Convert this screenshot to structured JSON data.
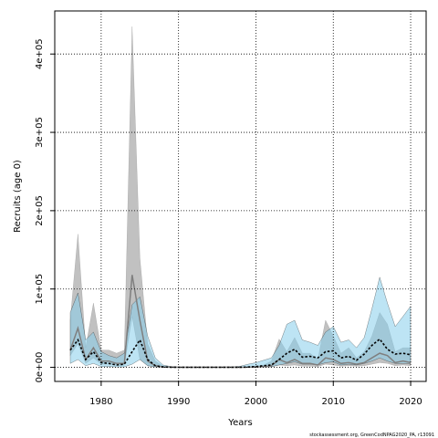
{
  "chart_data": {
    "type": "area",
    "xlabel": "Years",
    "ylabel": "Recruits (age 0)",
    "xlim": [
      1974,
      2022
    ],
    "ylim": [
      -18000,
      455000
    ],
    "x_ticks": [
      1980,
      1990,
      2000,
      2010,
      2020
    ],
    "y_ticks": [
      0,
      100000,
      200000,
      300000,
      400000
    ],
    "y_tick_labels": [
      "0e+00",
      "1e+05",
      "2e+05",
      "3e+05",
      "4e+05"
    ],
    "grid": true,
    "credit": "stockassessment.org, GreenCodNPAG2020_PA, r13091",
    "x": [
      1976,
      1977,
      1978,
      1979,
      1980,
      1981,
      1982,
      1983,
      1984,
      1985,
      1986,
      1987,
      1988,
      1989,
      1990,
      1991,
      1992,
      1993,
      1994,
      1995,
      1996,
      1997,
      1998,
      1999,
      2000,
      2001,
      2002,
      2003,
      2004,
      2005,
      2006,
      2007,
      2008,
      2009,
      2010,
      2011,
      2012,
      2013,
      2014,
      2015,
      2016,
      2017,
      2018,
      2019,
      2020
    ],
    "series": [
      {
        "color": "#7f7f7f",
        "fill": "#bebebe",
        "values": [
          22000,
          50000,
          10000,
          25000,
          8000,
          8000,
          5000,
          5000,
          118000,
          60000,
          8000,
          2000,
          300,
          200,
          100,
          100,
          100,
          100,
          100,
          100,
          100,
          100,
          100,
          200,
          500,
          1000,
          2000,
          10000,
          6000,
          10000,
          5000,
          5000,
          3000,
          12000,
          10000,
          5000,
          6000,
          4000,
          6000,
          12000,
          18000,
          15000,
          6000,
          8000,
          6000
        ],
        "lower": [
          15000,
          30000,
          5000,
          12000,
          4000,
          4000,
          2500,
          2500,
          65000,
          10000,
          2000,
          800,
          100,
          50,
          30,
          30,
          30,
          30,
          30,
          30,
          30,
          30,
          30,
          50,
          100,
          200,
          500,
          3000,
          2000,
          3000,
          1500,
          1500,
          1000,
          4000,
          3000,
          1500,
          2000,
          1500,
          2000,
          4000,
          6000,
          5000,
          2000,
          3000,
          2000
        ],
        "upper": [
          60000,
          170000,
          25000,
          82000,
          22000,
          22000,
          18000,
          22000,
          435000,
          140000,
          30000,
          8000,
          1500,
          800,
          400,
          400,
          400,
          400,
          400,
          400,
          400,
          400,
          400,
          600,
          1500,
          3000,
          8000,
          36000,
          20000,
          38000,
          18000,
          18000,
          10000,
          60000,
          40000,
          18000,
          25000,
          12000,
          20000,
          40000,
          70000,
          55000,
          20000,
          25000,
          25000
        ]
      },
      {
        "color": "#000000",
        "fill": "#87ceeb",
        "values": [
          22000,
          35000,
          10000,
          20000,
          6000,
          5000,
          3000,
          4000,
          20000,
          35000,
          10000,
          2000,
          500,
          200,
          100,
          100,
          100,
          100,
          100,
          100,
          100,
          100,
          100,
          400,
          1000,
          2000,
          3000,
          10000,
          18000,
          23000,
          13000,
          14000,
          12000,
          20000,
          21000,
          12000,
          14000,
          9000,
          17000,
          28000,
          36000,
          23000,
          17000,
          18000,
          16000
        ],
        "lower": [
          5000,
          10000,
          2000,
          5000,
          1000,
          1000,
          500,
          500,
          4000,
          10000,
          2000,
          500,
          100,
          50,
          20,
          20,
          20,
          20,
          20,
          20,
          20,
          20,
          20,
          100,
          300,
          500,
          800,
          3000,
          5000,
          7000,
          4000,
          4000,
          3000,
          6000,
          7000,
          3000,
          4000,
          3000,
          5000,
          8000,
          12000,
          8000,
          5000,
          5000,
          5000
        ],
        "upper": [
          70000,
          95000,
          35000,
          45000,
          20000,
          15000,
          12000,
          18000,
          80000,
          90000,
          40000,
          12000,
          3000,
          1000,
          500,
          500,
          500,
          500,
          500,
          500,
          600,
          800,
          1500,
          4000,
          6000,
          9000,
          12000,
          28000,
          55000,
          60000,
          35000,
          32000,
          28000,
          45000,
          52000,
          32000,
          35000,
          25000,
          38000,
          75000,
          115000,
          82000,
          52000,
          65000,
          78000
        ]
      }
    ]
  }
}
